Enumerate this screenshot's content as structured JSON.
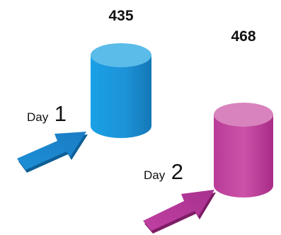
{
  "chart_data": {
    "type": "bar",
    "style": "3d-cylinder",
    "categories": [
      "Day 1",
      "Day 2"
    ],
    "category_labels": [
      {
        "word": "Day",
        "number": "1"
      },
      {
        "word": "Day",
        "number": "2"
      }
    ],
    "values": [
      435,
      468
    ],
    "value_labels": [
      "435",
      "468"
    ],
    "colors": {
      "day1_bar": "#1a96dc",
      "day1_top": "#5bbce9",
      "day1_arrow": "#1a86c8",
      "day2_bar": "#c8439e",
      "day2_top": "#d883bd",
      "day2_arrow": "#b8339a"
    },
    "title": "",
    "xlabel": "",
    "ylabel": "",
    "grid": false,
    "legend": "none"
  }
}
